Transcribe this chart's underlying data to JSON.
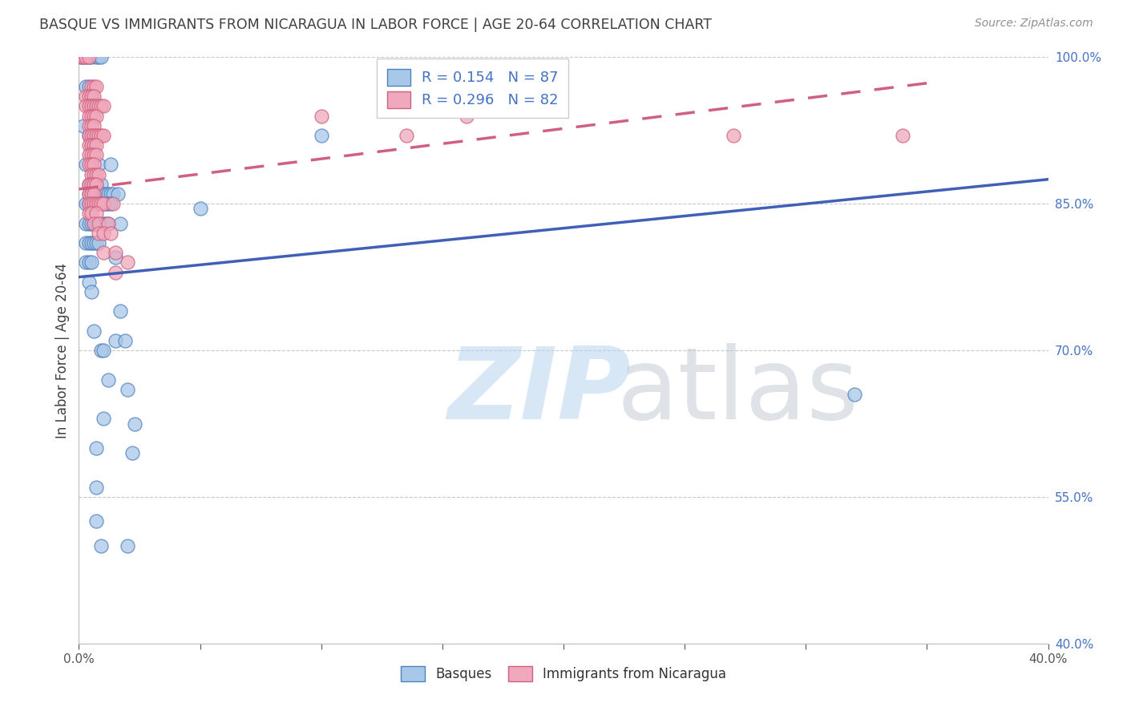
{
  "title": "BASQUE VS IMMIGRANTS FROM NICARAGUA IN LABOR FORCE | AGE 20-64 CORRELATION CHART",
  "source": "Source: ZipAtlas.com",
  "ylabel": "In Labor Force | Age 20-64",
  "xlim": [
    0.0,
    0.4
  ],
  "ylim": [
    0.4,
    1.0
  ],
  "yticks": [
    0.4,
    0.55,
    0.7,
    0.85,
    1.0
  ],
  "xticks": [
    0.0,
    0.05,
    0.1,
    0.15,
    0.2,
    0.25,
    0.3,
    0.35,
    0.4
  ],
  "blue_R": 0.154,
  "blue_N": 87,
  "pink_R": 0.296,
  "pink_N": 82,
  "blue_scatter_color": "#a8c8e8",
  "blue_edge_color": "#5080c0",
  "pink_scatter_color": "#f0a8bc",
  "pink_edge_color": "#d06080",
  "blue_line_color": "#4060b8",
  "pink_line_color": "#d06080",
  "grid_color": "#c8c8c8",
  "title_color": "#404040",
  "source_color": "#909090",
  "right_tick_color": "#4472c4",
  "background": "#ffffff",
  "blue_trend_x": [
    0.0,
    0.4
  ],
  "blue_trend_y": [
    0.775,
    0.875
  ],
  "pink_trend_x": [
    0.0,
    0.355
  ],
  "pink_trend_y": [
    0.865,
    0.975
  ],
  "blue_pts": [
    [
      0.001,
      1.0
    ],
    [
      0.002,
      1.0
    ],
    [
      0.003,
      1.0
    ],
    [
      0.004,
      1.0
    ],
    [
      0.005,
      1.0
    ],
    [
      0.007,
      1.0
    ],
    [
      0.008,
      1.0
    ],
    [
      0.009,
      1.0
    ],
    [
      0.003,
      0.97
    ],
    [
      0.004,
      0.97
    ],
    [
      0.005,
      0.96
    ],
    [
      0.002,
      0.93
    ],
    [
      0.004,
      0.92
    ],
    [
      0.005,
      0.91
    ],
    [
      0.003,
      0.89
    ],
    [
      0.008,
      0.89
    ],
    [
      0.013,
      0.89
    ],
    [
      0.004,
      0.87
    ],
    [
      0.006,
      0.87
    ],
    [
      0.007,
      0.87
    ],
    [
      0.009,
      0.87
    ],
    [
      0.004,
      0.86
    ],
    [
      0.005,
      0.86
    ],
    [
      0.006,
      0.86
    ],
    [
      0.007,
      0.86
    ],
    [
      0.008,
      0.86
    ],
    [
      0.009,
      0.86
    ],
    [
      0.01,
      0.86
    ],
    [
      0.011,
      0.86
    ],
    [
      0.012,
      0.86
    ],
    [
      0.013,
      0.86
    ],
    [
      0.014,
      0.86
    ],
    [
      0.016,
      0.86
    ],
    [
      0.003,
      0.85
    ],
    [
      0.004,
      0.85
    ],
    [
      0.005,
      0.85
    ],
    [
      0.006,
      0.85
    ],
    [
      0.007,
      0.85
    ],
    [
      0.008,
      0.85
    ],
    [
      0.009,
      0.85
    ],
    [
      0.01,
      0.85
    ],
    [
      0.011,
      0.85
    ],
    [
      0.012,
      0.85
    ],
    [
      0.013,
      0.85
    ],
    [
      0.05,
      0.845
    ],
    [
      0.003,
      0.83
    ],
    [
      0.004,
      0.83
    ],
    [
      0.005,
      0.83
    ],
    [
      0.006,
      0.83
    ],
    [
      0.007,
      0.83
    ],
    [
      0.008,
      0.83
    ],
    [
      0.009,
      0.83
    ],
    [
      0.01,
      0.83
    ],
    [
      0.011,
      0.83
    ],
    [
      0.012,
      0.83
    ],
    [
      0.017,
      0.83
    ],
    [
      0.003,
      0.81
    ],
    [
      0.004,
      0.81
    ],
    [
      0.005,
      0.81
    ],
    [
      0.006,
      0.81
    ],
    [
      0.007,
      0.81
    ],
    [
      0.008,
      0.81
    ],
    [
      0.015,
      0.795
    ],
    [
      0.003,
      0.79
    ],
    [
      0.004,
      0.79
    ],
    [
      0.005,
      0.79
    ],
    [
      0.004,
      0.77
    ],
    [
      0.005,
      0.76
    ],
    [
      0.017,
      0.74
    ],
    [
      0.006,
      0.72
    ],
    [
      0.015,
      0.71
    ],
    [
      0.019,
      0.71
    ],
    [
      0.009,
      0.7
    ],
    [
      0.01,
      0.7
    ],
    [
      0.012,
      0.67
    ],
    [
      0.02,
      0.66
    ],
    [
      0.01,
      0.63
    ],
    [
      0.023,
      0.625
    ],
    [
      0.007,
      0.6
    ],
    [
      0.022,
      0.595
    ],
    [
      0.007,
      0.56
    ],
    [
      0.007,
      0.525
    ],
    [
      0.009,
      0.5
    ],
    [
      0.02,
      0.5
    ],
    [
      0.1,
      0.92
    ],
    [
      0.32,
      0.655
    ]
  ],
  "pink_pts": [
    [
      0.001,
      1.0
    ],
    [
      0.002,
      1.0
    ],
    [
      0.003,
      1.0
    ],
    [
      0.004,
      1.0
    ],
    [
      0.005,
      0.97
    ],
    [
      0.006,
      0.97
    ],
    [
      0.007,
      0.97
    ],
    [
      0.003,
      0.96
    ],
    [
      0.004,
      0.96
    ],
    [
      0.005,
      0.96
    ],
    [
      0.006,
      0.96
    ],
    [
      0.003,
      0.95
    ],
    [
      0.004,
      0.95
    ],
    [
      0.005,
      0.95
    ],
    [
      0.006,
      0.95
    ],
    [
      0.007,
      0.95
    ],
    [
      0.008,
      0.95
    ],
    [
      0.009,
      0.95
    ],
    [
      0.01,
      0.95
    ],
    [
      0.004,
      0.94
    ],
    [
      0.005,
      0.94
    ],
    [
      0.006,
      0.94
    ],
    [
      0.007,
      0.94
    ],
    [
      0.004,
      0.93
    ],
    [
      0.005,
      0.93
    ],
    [
      0.006,
      0.93
    ],
    [
      0.004,
      0.92
    ],
    [
      0.005,
      0.92
    ],
    [
      0.006,
      0.92
    ],
    [
      0.007,
      0.92
    ],
    [
      0.008,
      0.92
    ],
    [
      0.009,
      0.92
    ],
    [
      0.01,
      0.92
    ],
    [
      0.004,
      0.91
    ],
    [
      0.005,
      0.91
    ],
    [
      0.006,
      0.91
    ],
    [
      0.007,
      0.91
    ],
    [
      0.004,
      0.9
    ],
    [
      0.005,
      0.9
    ],
    [
      0.006,
      0.9
    ],
    [
      0.007,
      0.9
    ],
    [
      0.004,
      0.89
    ],
    [
      0.005,
      0.89
    ],
    [
      0.006,
      0.89
    ],
    [
      0.005,
      0.88
    ],
    [
      0.006,
      0.88
    ],
    [
      0.007,
      0.88
    ],
    [
      0.008,
      0.88
    ],
    [
      0.004,
      0.87
    ],
    [
      0.005,
      0.87
    ],
    [
      0.006,
      0.87
    ],
    [
      0.007,
      0.87
    ],
    [
      0.004,
      0.86
    ],
    [
      0.005,
      0.86
    ],
    [
      0.006,
      0.86
    ],
    [
      0.004,
      0.85
    ],
    [
      0.005,
      0.85
    ],
    [
      0.006,
      0.85
    ],
    [
      0.007,
      0.85
    ],
    [
      0.008,
      0.85
    ],
    [
      0.009,
      0.85
    ],
    [
      0.01,
      0.85
    ],
    [
      0.014,
      0.85
    ],
    [
      0.004,
      0.84
    ],
    [
      0.005,
      0.84
    ],
    [
      0.007,
      0.84
    ],
    [
      0.006,
      0.83
    ],
    [
      0.008,
      0.83
    ],
    [
      0.012,
      0.83
    ],
    [
      0.008,
      0.82
    ],
    [
      0.01,
      0.82
    ],
    [
      0.013,
      0.82
    ],
    [
      0.01,
      0.8
    ],
    [
      0.015,
      0.8
    ],
    [
      0.02,
      0.79
    ],
    [
      0.015,
      0.78
    ],
    [
      0.1,
      0.94
    ],
    [
      0.135,
      0.92
    ],
    [
      0.27,
      0.92
    ],
    [
      0.34,
      0.92
    ],
    [
      0.16,
      0.94
    ]
  ]
}
